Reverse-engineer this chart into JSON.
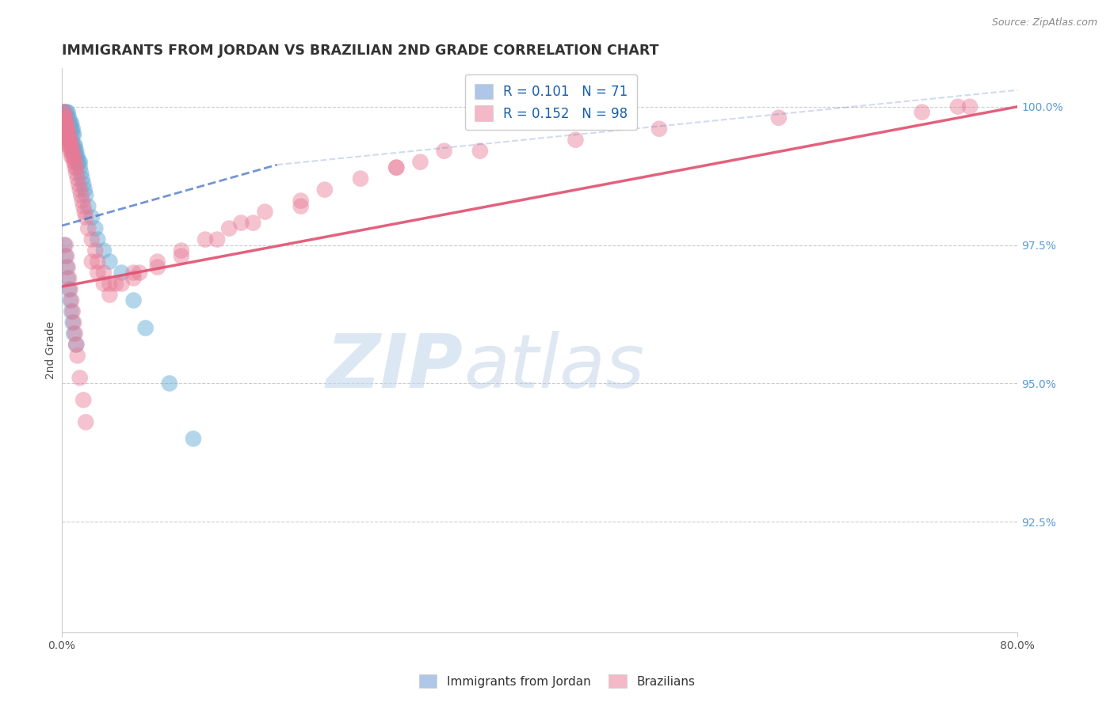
{
  "title": "IMMIGRANTS FROM JORDAN VS BRAZILIAN 2ND GRADE CORRELATION CHART",
  "source": "Source: ZipAtlas.com",
  "xlabel_bottom_left": "0.0%",
  "xlabel_bottom_right": "80.0%",
  "ylabel": "2nd Grade",
  "ylabel_right_labels": [
    "100.0%",
    "97.5%",
    "95.0%",
    "92.5%"
  ],
  "ylabel_right_positions": [
    1.0,
    0.975,
    0.95,
    0.925
  ],
  "xlim": [
    0.0,
    0.8
  ],
  "ylim": [
    0.905,
    1.007
  ],
  "legend_label_blue": "R = 0.101   N = 71",
  "legend_label_pink": "R = 0.152   N = 98",
  "legend_color_blue": "#aec6e8",
  "legend_color_pink": "#f4b8c8",
  "watermark_text": "ZIP",
  "watermark_text2": "atlas",
  "blue_dot_color": "#6aaed6",
  "pink_dot_color": "#e87a96",
  "blue_line_color": "#4472c4",
  "pink_line_color": "#e05070",
  "grid_color": "#cccccc",
  "title_color": "#333333",
  "blue_line_x": [
    0.0,
    0.18
  ],
  "blue_line_y": [
    0.9785,
    0.9895
  ],
  "pink_line_x": [
    0.0,
    0.8
  ],
  "pink_line_y": [
    0.9675,
    1.0
  ],
  "jordan_x": [
    0.001,
    0.001,
    0.001,
    0.002,
    0.002,
    0.002,
    0.002,
    0.003,
    0.003,
    0.003,
    0.003,
    0.003,
    0.004,
    0.004,
    0.004,
    0.004,
    0.005,
    0.005,
    0.005,
    0.005,
    0.006,
    0.006,
    0.006,
    0.006,
    0.007,
    0.007,
    0.007,
    0.008,
    0.008,
    0.008,
    0.009,
    0.009,
    0.009,
    0.01,
    0.01,
    0.01,
    0.011,
    0.011,
    0.012,
    0.012,
    0.013,
    0.013,
    0.014,
    0.015,
    0.015,
    0.016,
    0.017,
    0.018,
    0.019,
    0.02,
    0.022,
    0.025,
    0.028,
    0.03,
    0.035,
    0.04,
    0.05,
    0.06,
    0.07,
    0.09,
    0.11,
    0.002,
    0.003,
    0.004,
    0.005,
    0.006,
    0.007,
    0.008,
    0.009,
    0.01,
    0.012
  ],
  "jordan_y": [
    0.999,
    0.998,
    0.997,
    0.999,
    0.998,
    0.997,
    0.996,
    0.999,
    0.998,
    0.997,
    0.996,
    0.995,
    0.999,
    0.998,
    0.997,
    0.996,
    0.999,
    0.998,
    0.997,
    0.996,
    0.998,
    0.997,
    0.996,
    0.995,
    0.997,
    0.996,
    0.995,
    0.997,
    0.996,
    0.994,
    0.996,
    0.995,
    0.993,
    0.995,
    0.993,
    0.992,
    0.993,
    0.992,
    0.992,
    0.991,
    0.991,
    0.99,
    0.99,
    0.99,
    0.989,
    0.988,
    0.987,
    0.986,
    0.985,
    0.984,
    0.982,
    0.98,
    0.978,
    0.976,
    0.974,
    0.972,
    0.97,
    0.965,
    0.96,
    0.95,
    0.94,
    0.975,
    0.973,
    0.971,
    0.969,
    0.967,
    0.965,
    0.963,
    0.961,
    0.959,
    0.957
  ],
  "brazil_x": [
    0.001,
    0.001,
    0.001,
    0.002,
    0.002,
    0.002,
    0.002,
    0.003,
    0.003,
    0.003,
    0.003,
    0.004,
    0.004,
    0.004,
    0.004,
    0.005,
    0.005,
    0.005,
    0.005,
    0.006,
    0.006,
    0.006,
    0.007,
    0.007,
    0.007,
    0.008,
    0.008,
    0.008,
    0.009,
    0.009,
    0.01,
    0.01,
    0.011,
    0.011,
    0.012,
    0.012,
    0.013,
    0.014,
    0.015,
    0.016,
    0.017,
    0.018,
    0.019,
    0.02,
    0.022,
    0.025,
    0.028,
    0.03,
    0.035,
    0.04,
    0.045,
    0.05,
    0.06,
    0.065,
    0.08,
    0.1,
    0.12,
    0.14,
    0.15,
    0.17,
    0.2,
    0.22,
    0.25,
    0.28,
    0.3,
    0.32,
    0.003,
    0.004,
    0.005,
    0.006,
    0.007,
    0.008,
    0.009,
    0.01,
    0.011,
    0.012,
    0.013,
    0.015,
    0.018,
    0.02,
    0.025,
    0.03,
    0.035,
    0.04,
    0.06,
    0.08,
    0.1,
    0.13,
    0.16,
    0.2,
    0.28,
    0.35,
    0.43,
    0.5,
    0.6,
    0.72,
    0.75,
    0.76
  ],
  "brazil_y": [
    0.999,
    0.998,
    0.997,
    0.999,
    0.998,
    0.997,
    0.996,
    0.998,
    0.997,
    0.996,
    0.995,
    0.997,
    0.996,
    0.995,
    0.994,
    0.996,
    0.995,
    0.994,
    0.993,
    0.995,
    0.994,
    0.993,
    0.994,
    0.993,
    0.992,
    0.993,
    0.992,
    0.991,
    0.992,
    0.991,
    0.991,
    0.99,
    0.99,
    0.989,
    0.989,
    0.988,
    0.987,
    0.986,
    0.985,
    0.984,
    0.983,
    0.982,
    0.981,
    0.98,
    0.978,
    0.976,
    0.974,
    0.972,
    0.97,
    0.968,
    0.968,
    0.968,
    0.97,
    0.97,
    0.972,
    0.974,
    0.976,
    0.978,
    0.979,
    0.981,
    0.983,
    0.985,
    0.987,
    0.989,
    0.99,
    0.992,
    0.975,
    0.973,
    0.971,
    0.969,
    0.967,
    0.965,
    0.963,
    0.961,
    0.959,
    0.957,
    0.955,
    0.951,
    0.947,
    0.943,
    0.972,
    0.97,
    0.968,
    0.966,
    0.969,
    0.971,
    0.973,
    0.976,
    0.979,
    0.982,
    0.989,
    0.992,
    0.994,
    0.996,
    0.998,
    0.999,
    1.0,
    1.0
  ]
}
